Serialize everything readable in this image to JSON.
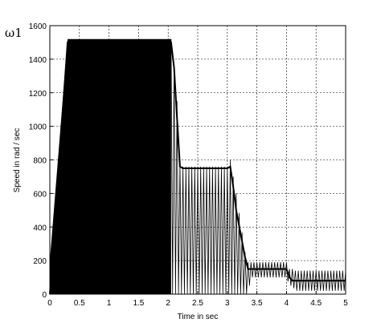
{
  "chart_data": {
    "type": "line",
    "corner_label": "ω1",
    "xlabel": "Time in sec",
    "ylabel": "Speed in rad / sec",
    "xlim": [
      0,
      5
    ],
    "ylim": [
      0,
      1600
    ],
    "xticks": [
      "0",
      "0.5",
      "1",
      "1.5",
      "2",
      "2.5",
      "3",
      "3.5",
      "4",
      "4.5",
      "5"
    ],
    "yticks": [
      "0",
      "200",
      "400",
      "600",
      "800",
      "1000",
      "1200",
      "1400",
      "1600"
    ],
    "grid": true,
    "grid_style": "dashed",
    "series_color": "#000000",
    "series": [
      {
        "upper_envelope": {
          "x": [
            0,
            0.3,
            1.95,
            2.05,
            2.1,
            2.15,
            2.2,
            2.25,
            3.0,
            3.05,
            3.1,
            3.15,
            3.3,
            3.35,
            3.4,
            4.0,
            4.05,
            4.1,
            4.15,
            5.0
          ],
          "y": [
            200,
            1520,
            1520,
            1520,
            1350,
            1150,
            780,
            760,
            760,
            800,
            700,
            600,
            250,
            190,
            190,
            190,
            150,
            150,
            140,
            140
          ]
        },
        "mean": {
          "x": [
            0,
            0.3,
            1.95,
            2.05,
            2.1,
            2.15,
            2.2,
            2.25,
            3.0,
            3.05,
            3.1,
            3.15,
            3.3,
            3.35,
            3.4,
            4.0,
            4.05,
            4.1,
            4.15,
            5.0
          ],
          "y": [
            0,
            1500,
            1500,
            1500,
            1350,
            1050,
            760,
            750,
            750,
            760,
            640,
            500,
            220,
            150,
            150,
            150,
            100,
            80,
            80,
            80
          ]
        },
        "lower_envelope": {
          "x": [
            0,
            0.3,
            1.95,
            2.05,
            2.1,
            2.15,
            2.2,
            2.25,
            3.0,
            3.05,
            3.1,
            3.15,
            3.3,
            3.35,
            3.4,
            4.0,
            4.05,
            4.1,
            4.15,
            5.0
          ],
          "y": [
            0,
            0,
            0,
            0,
            0,
            0,
            0,
            0,
            0,
            0,
            0,
            0,
            0,
            0,
            100,
            100,
            50,
            50,
            20,
            20
          ]
        },
        "oscillation_period": 0.05
      }
    ]
  }
}
